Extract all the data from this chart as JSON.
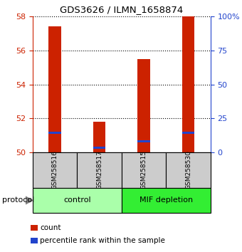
{
  "title": "GDS3626 / ILMN_1658874",
  "samples": [
    "GSM258516",
    "GSM258517",
    "GSM258515",
    "GSM258530"
  ],
  "bar_bottoms": [
    50,
    50,
    50,
    50
  ],
  "bar_tops": [
    57.4,
    51.8,
    55.5,
    58.0
  ],
  "blue_values": [
    51.15,
    50.28,
    50.65,
    51.15
  ],
  "bar_color": "#cc2200",
  "blue_color": "#2244cc",
  "ylim_left": [
    50,
    58
  ],
  "yticks_left": [
    50,
    52,
    54,
    56,
    58
  ],
  "yticks_right": [
    0,
    25,
    50,
    75,
    100
  ],
  "ytick_labels_right": [
    "0",
    "25",
    "50",
    "75",
    "100%"
  ],
  "groups": [
    {
      "label": "control",
      "color": "#aaffaa"
    },
    {
      "label": "MIF depletion",
      "color": "#33ee33"
    }
  ],
  "protocol_label": "protocol",
  "legend_count_label": "count",
  "legend_percentile_label": "percentile rank within the sample",
  "tick_color_left": "#cc2200",
  "tick_color_right": "#2244cc",
  "sample_box_color": "#cccccc",
  "bar_width": 0.28
}
